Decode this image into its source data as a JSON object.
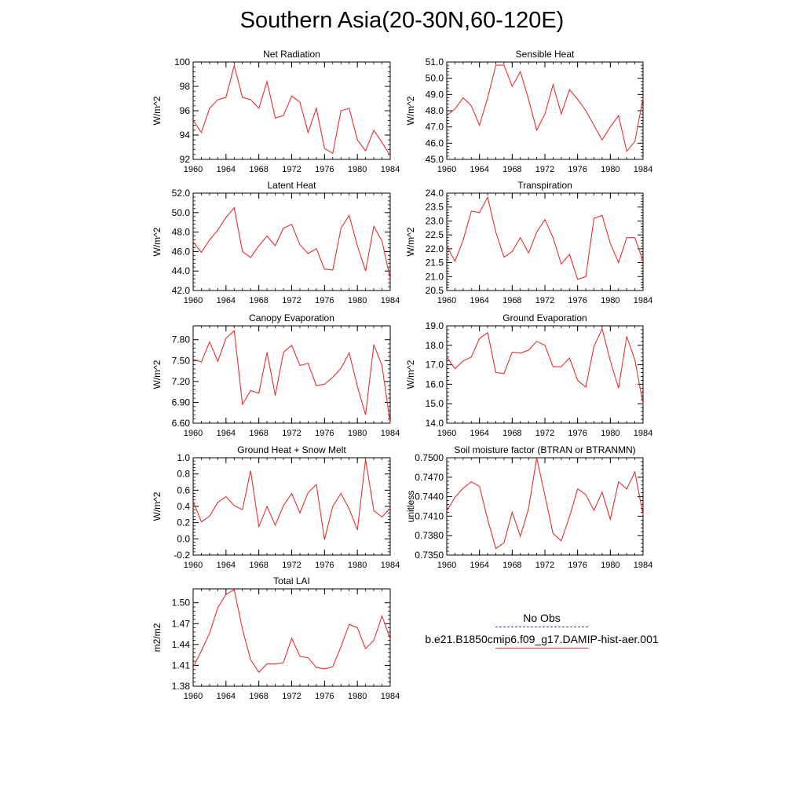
{
  "title": "Southern Asia(20-30N,60-120E)",
  "legend": {
    "obs_label": "No Obs",
    "model_label": "b.e21.B1850cmip6.f09_g17.DAMIP-hist-aer.001",
    "obs_color": "#3b3bb0",
    "model_color": "#e53030"
  },
  "chart_data": [
    {
      "type": "line",
      "title": "Net Radiation",
      "ylabel": "W/m^2",
      "xlim": [
        1960,
        1984
      ],
      "ylim": [
        92,
        100
      ],
      "xticks": [
        1960,
        1964,
        1968,
        1972,
        1976,
        1980,
        1984
      ],
      "yticks": [
        92,
        94,
        96,
        98,
        100
      ],
      "ytick_labels": [
        "92",
        "94",
        "96",
        "98",
        "100"
      ],
      "grid": false,
      "series": [
        {
          "name": "b.e21.B1850cmip6.f09_g17.DAMIP-hist-aer.001",
          "x": [
            1960,
            1961,
            1962,
            1963,
            1964,
            1965,
            1966,
            1967,
            1968,
            1969,
            1970,
            1971,
            1972,
            1973,
            1974,
            1975,
            1976,
            1977,
            1978,
            1979,
            1980,
            1981,
            1982,
            1983,
            1984
          ],
          "values": [
            95.2,
            94.2,
            96.2,
            96.9,
            97.1,
            99.7,
            97.1,
            96.9,
            96.2,
            98.4,
            95.4,
            95.6,
            97.2,
            96.7,
            94.2,
            96.2,
            92.9,
            92.5,
            96.0,
            96.2,
            93.6,
            92.7,
            94.4,
            93.4,
            92.3
          ]
        }
      ]
    },
    {
      "type": "line",
      "title": "Sensible Heat",
      "ylabel": "W/m^2",
      "xlim": [
        1960,
        1984
      ],
      "ylim": [
        45,
        51
      ],
      "xticks": [
        1960,
        1964,
        1968,
        1972,
        1976,
        1980,
        1984
      ],
      "yticks": [
        45,
        46,
        47,
        48,
        49,
        50,
        51
      ],
      "ytick_labels": [
        "45.0",
        "46.0",
        "47.0",
        "48.0",
        "49.0",
        "50.0",
        "51.0"
      ],
      "grid": false,
      "series": [
        {
          "name": "b.e21.B1850cmip6.f09_g17.DAMIP-hist-aer.001",
          "x": [
            1960,
            1961,
            1962,
            1963,
            1964,
            1965,
            1966,
            1967,
            1968,
            1969,
            1970,
            1971,
            1972,
            1973,
            1974,
            1975,
            1976,
            1977,
            1978,
            1979,
            1980,
            1981,
            1982,
            1983,
            1984
          ],
          "values": [
            47.7,
            48.1,
            48.8,
            48.3,
            47.1,
            48.8,
            50.8,
            50.8,
            49.5,
            50.4,
            48.7,
            46.8,
            47.8,
            49.6,
            47.8,
            49.3,
            48.7,
            48.0,
            47.1,
            46.2,
            47.0,
            47.7,
            45.5,
            46.1,
            48.8
          ]
        }
      ]
    },
    {
      "type": "line",
      "title": "Latent Heat",
      "ylabel": "W/m^2",
      "xlim": [
        1960,
        1984
      ],
      "ylim": [
        42,
        52
      ],
      "xticks": [
        1960,
        1964,
        1968,
        1972,
        1976,
        1980,
        1984
      ],
      "yticks": [
        42,
        44,
        46,
        48,
        50,
        52
      ],
      "ytick_labels": [
        "42.0",
        "44.0",
        "46.0",
        "48.0",
        "50.0",
        "52.0"
      ],
      "grid": false,
      "series": [
        {
          "name": "b.e21.B1850cmip6.f09_g17.DAMIP-hist-aer.001",
          "x": [
            1960,
            1961,
            1962,
            1963,
            1964,
            1965,
            1966,
            1967,
            1968,
            1969,
            1970,
            1971,
            1972,
            1973,
            1974,
            1975,
            1976,
            1977,
            1978,
            1979,
            1980,
            1981,
            1982,
            1983,
            1984
          ],
          "values": [
            47.0,
            45.9,
            47.2,
            48.2,
            49.5,
            50.5,
            46.0,
            45.4,
            46.6,
            47.6,
            46.6,
            48.4,
            48.8,
            46.7,
            45.8,
            46.3,
            44.2,
            44.1,
            48.4,
            49.7,
            46.6,
            44.0,
            48.6,
            47.1,
            43.2
          ]
        }
      ]
    },
    {
      "type": "line",
      "title": "Transpiration",
      "ylabel": "W/m^2",
      "xlim": [
        1960,
        1984
      ],
      "ylim": [
        20.5,
        24
      ],
      "xticks": [
        1960,
        1964,
        1968,
        1972,
        1976,
        1980,
        1984
      ],
      "yticks": [
        20.5,
        21,
        21.5,
        22,
        22.5,
        23,
        23.5,
        24
      ],
      "ytick_labels": [
        "20.5",
        "21.0",
        "21.5",
        "22.0",
        "22.5",
        "23.0",
        "23.5",
        "24.0"
      ],
      "grid": false,
      "series": [
        {
          "name": "b.e21.B1850cmip6.f09_g17.DAMIP-hist-aer.001",
          "x": [
            1960,
            1961,
            1962,
            1963,
            1964,
            1965,
            1966,
            1967,
            1968,
            1969,
            1970,
            1971,
            1972,
            1973,
            1974,
            1975,
            1976,
            1977,
            1978,
            1979,
            1980,
            1981,
            1982,
            1983,
            1984
          ],
          "values": [
            22.1,
            21.55,
            22.3,
            23.35,
            23.3,
            23.85,
            22.6,
            21.7,
            21.9,
            22.4,
            21.85,
            22.6,
            23.05,
            22.4,
            21.45,
            21.8,
            20.9,
            21.0,
            23.1,
            23.2,
            22.2,
            21.5,
            22.4,
            22.4,
            21.55
          ]
        }
      ]
    },
    {
      "type": "line",
      "title": "Canopy Evaporation",
      "ylabel": "W/m^2",
      "xlim": [
        1960,
        1984
      ],
      "ylim": [
        6.6,
        8.0
      ],
      "xticks": [
        1960,
        1964,
        1968,
        1972,
        1976,
        1980,
        1984
      ],
      "yticks": [
        6.6,
        6.9,
        7.2,
        7.5,
        7.8
      ],
      "ytick_labels": [
        "6.60",
        "6.90",
        "7.20",
        "7.50",
        "7.80"
      ],
      "grid": false,
      "series": [
        {
          "name": "b.e21.B1850cmip6.f09_g17.DAMIP-hist-aer.001",
          "x": [
            1960,
            1961,
            1962,
            1963,
            1964,
            1965,
            1966,
            1967,
            1968,
            1969,
            1970,
            1971,
            1972,
            1973,
            1974,
            1975,
            1976,
            1977,
            1978,
            1979,
            1980,
            1981,
            1982,
            1983,
            1984
          ],
          "values": [
            7.52,
            7.48,
            7.77,
            7.49,
            7.82,
            7.93,
            6.87,
            7.07,
            7.03,
            7.62,
            7.0,
            7.62,
            7.72,
            7.43,
            7.46,
            7.14,
            7.16,
            7.26,
            7.39,
            7.61,
            7.13,
            6.72,
            7.73,
            7.43,
            6.6
          ]
        }
      ]
    },
    {
      "type": "line",
      "title": "Ground Evaporation",
      "ylabel": "W/m^2",
      "xlim": [
        1960,
        1984
      ],
      "ylim": [
        14,
        19
      ],
      "xticks": [
        1960,
        1964,
        1968,
        1972,
        1976,
        1980,
        1984
      ],
      "yticks": [
        14,
        15,
        16,
        17,
        18,
        19
      ],
      "ytick_labels": [
        "14.0",
        "15.0",
        "16.0",
        "17.0",
        "18.0",
        "19.0"
      ],
      "grid": false,
      "series": [
        {
          "name": "b.e21.B1850cmip6.f09_g17.DAMIP-hist-aer.001",
          "x": [
            1960,
            1961,
            1962,
            1963,
            1964,
            1965,
            1966,
            1967,
            1968,
            1969,
            1970,
            1971,
            1972,
            1973,
            1974,
            1975,
            1976,
            1977,
            1978,
            1979,
            1980,
            1981,
            1982,
            1983,
            1984
          ],
          "values": [
            17.4,
            16.8,
            17.2,
            17.4,
            18.35,
            18.65,
            16.6,
            16.55,
            17.65,
            17.6,
            17.75,
            18.2,
            18.0,
            16.9,
            16.9,
            17.35,
            16.2,
            15.85,
            17.95,
            18.85,
            17.2,
            15.8,
            18.45,
            17.25,
            15.0
          ]
        }
      ]
    },
    {
      "type": "line",
      "title": "Ground Heat + Snow Melt",
      "ylabel": "W/m^2",
      "xlim": [
        1960,
        1984
      ],
      "ylim": [
        -0.2,
        1.0
      ],
      "xticks": [
        1960,
        1964,
        1968,
        1972,
        1976,
        1980,
        1984
      ],
      "yticks": [
        -0.2,
        0.0,
        0.2,
        0.4,
        0.6,
        0.8,
        1.0
      ],
      "ytick_labels": [
        "-0.2",
        "0.0",
        "0.2",
        "0.4",
        "0.6",
        "0.8",
        "1.0"
      ],
      "grid": false,
      "series": [
        {
          "name": "b.e21.B1850cmip6.f09_g17.DAMIP-hist-aer.001",
          "x": [
            1960,
            1961,
            1962,
            1963,
            1964,
            1965,
            1966,
            1967,
            1968,
            1969,
            1970,
            1971,
            1972,
            1973,
            1974,
            1975,
            1976,
            1977,
            1978,
            1979,
            1980,
            1981,
            1982,
            1983,
            1984
          ],
          "values": [
            0.46,
            0.21,
            0.28,
            0.45,
            0.52,
            0.41,
            0.36,
            0.84,
            0.15,
            0.4,
            0.17,
            0.41,
            0.56,
            0.32,
            0.57,
            0.67,
            -0.01,
            0.4,
            0.56,
            0.37,
            0.11,
            0.98,
            0.35,
            0.27,
            0.38
          ]
        }
      ]
    },
    {
      "type": "line",
      "title": "Soil moisture factor (BTRAN or BTRANMN)",
      "ylabel": "unitless",
      "xlim": [
        1960,
        1984
      ],
      "ylim": [
        0.735,
        0.75
      ],
      "xticks": [
        1960,
        1964,
        1968,
        1972,
        1976,
        1980,
        1984
      ],
      "yticks": [
        0.735,
        0.738,
        0.741,
        0.744,
        0.747,
        0.75
      ],
      "ytick_labels": [
        "0.7350",
        "0.7380",
        "0.7410",
        "0.7440",
        "0.7470",
        "0.7500"
      ],
      "grid": false,
      "series": [
        {
          "name": "b.e21.B1850cmip6.f09_g17.DAMIP-hist-aer.001",
          "x": [
            1960,
            1961,
            1962,
            1963,
            1964,
            1965,
            1966,
            1967,
            1968,
            1969,
            1970,
            1971,
            1972,
            1973,
            1974,
            1975,
            1976,
            1977,
            1978,
            1979,
            1980,
            1981,
            1982,
            1983,
            1984
          ],
          "values": [
            0.7418,
            0.7439,
            0.7453,
            0.7463,
            0.7456,
            0.7405,
            0.736,
            0.7369,
            0.7416,
            0.7379,
            0.7422,
            0.75,
            0.7442,
            0.7383,
            0.7372,
            0.7409,
            0.7452,
            0.7443,
            0.7419,
            0.7447,
            0.7405,
            0.7463,
            0.7452,
            0.7478,
            0.7412
          ]
        }
      ]
    },
    {
      "type": "line",
      "title": "Total LAI",
      "ylabel": "m2/m2",
      "xlim": [
        1960,
        1984
      ],
      "ylim": [
        1.38,
        1.52
      ],
      "xticks": [
        1960,
        1964,
        1968,
        1972,
        1976,
        1980,
        1984
      ],
      "yticks": [
        1.38,
        1.41,
        1.44,
        1.47,
        1.5
      ],
      "ytick_labels": [
        "1.38",
        "1.41",
        "1.44",
        "1.47",
        "1.50"
      ],
      "grid": false,
      "series": [
        {
          "name": "b.e21.B1850cmip6.f09_g17.DAMIP-hist-aer.001",
          "x": [
            1960,
            1961,
            1962,
            1963,
            1964,
            1965,
            1966,
            1967,
            1968,
            1969,
            1970,
            1971,
            1972,
            1973,
            1974,
            1975,
            1976,
            1977,
            1978,
            1979,
            1980,
            1981,
            1982,
            1983,
            1984
          ],
          "values": [
            1.407,
            1.431,
            1.456,
            1.493,
            1.512,
            1.519,
            1.462,
            1.418,
            1.4,
            1.412,
            1.412,
            1.414,
            1.449,
            1.423,
            1.421,
            1.407,
            1.405,
            1.408,
            1.437,
            1.469,
            1.464,
            1.434,
            1.446,
            1.481,
            1.448
          ]
        }
      ]
    }
  ]
}
